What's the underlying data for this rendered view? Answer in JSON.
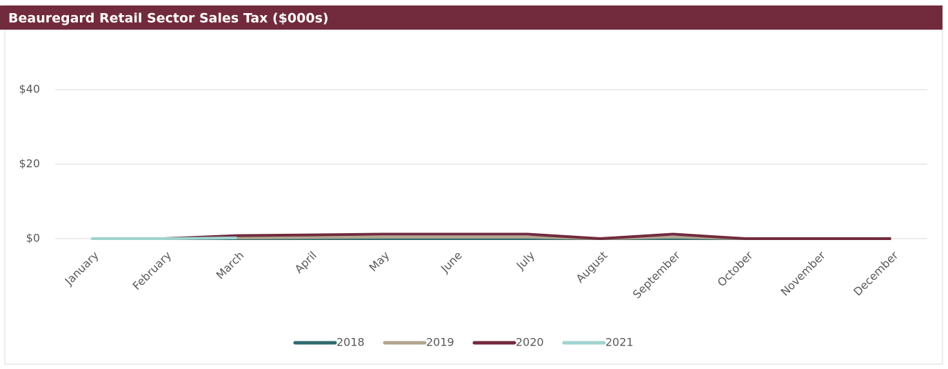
{
  "chart_data": {
    "type": "line",
    "title": "Beauregard Retail Sector Sales Tax ($000s)",
    "categories": [
      "January",
      "February",
      "March",
      "April",
      "May",
      "June",
      "July",
      "August",
      "September",
      "October",
      "November",
      "December"
    ],
    "series": [
      {
        "name": "2018",
        "color": "#2e6b6e",
        "values": [
          0,
          0,
          0,
          0,
          0,
          0,
          0,
          0,
          0,
          0,
          0,
          0
        ]
      },
      {
        "name": "2019",
        "color": "#b0a48e",
        "values": [
          0,
          0,
          0.2,
          0.3,
          0.4,
          0.4,
          0.4,
          0,
          0.4,
          0,
          0,
          0
        ]
      },
      {
        "name": "2020",
        "color": "#722b3d",
        "values": [
          0,
          0,
          0.8,
          1.0,
          1.2,
          1.2,
          1.2,
          0,
          1.2,
          0,
          0,
          0
        ]
      },
      {
        "name": "2021",
        "color": "#9fd3cf",
        "values": [
          0,
          0,
          0.2,
          null,
          null,
          null,
          null,
          null,
          null,
          null,
          null,
          null
        ]
      }
    ],
    "ylim": [
      0,
      50
    ],
    "yticks": [
      {
        "value": 0,
        "label": "$0"
      },
      {
        "value": 20,
        "label": "$20"
      },
      {
        "value": 40,
        "label": "$40"
      }
    ],
    "grid": true
  }
}
